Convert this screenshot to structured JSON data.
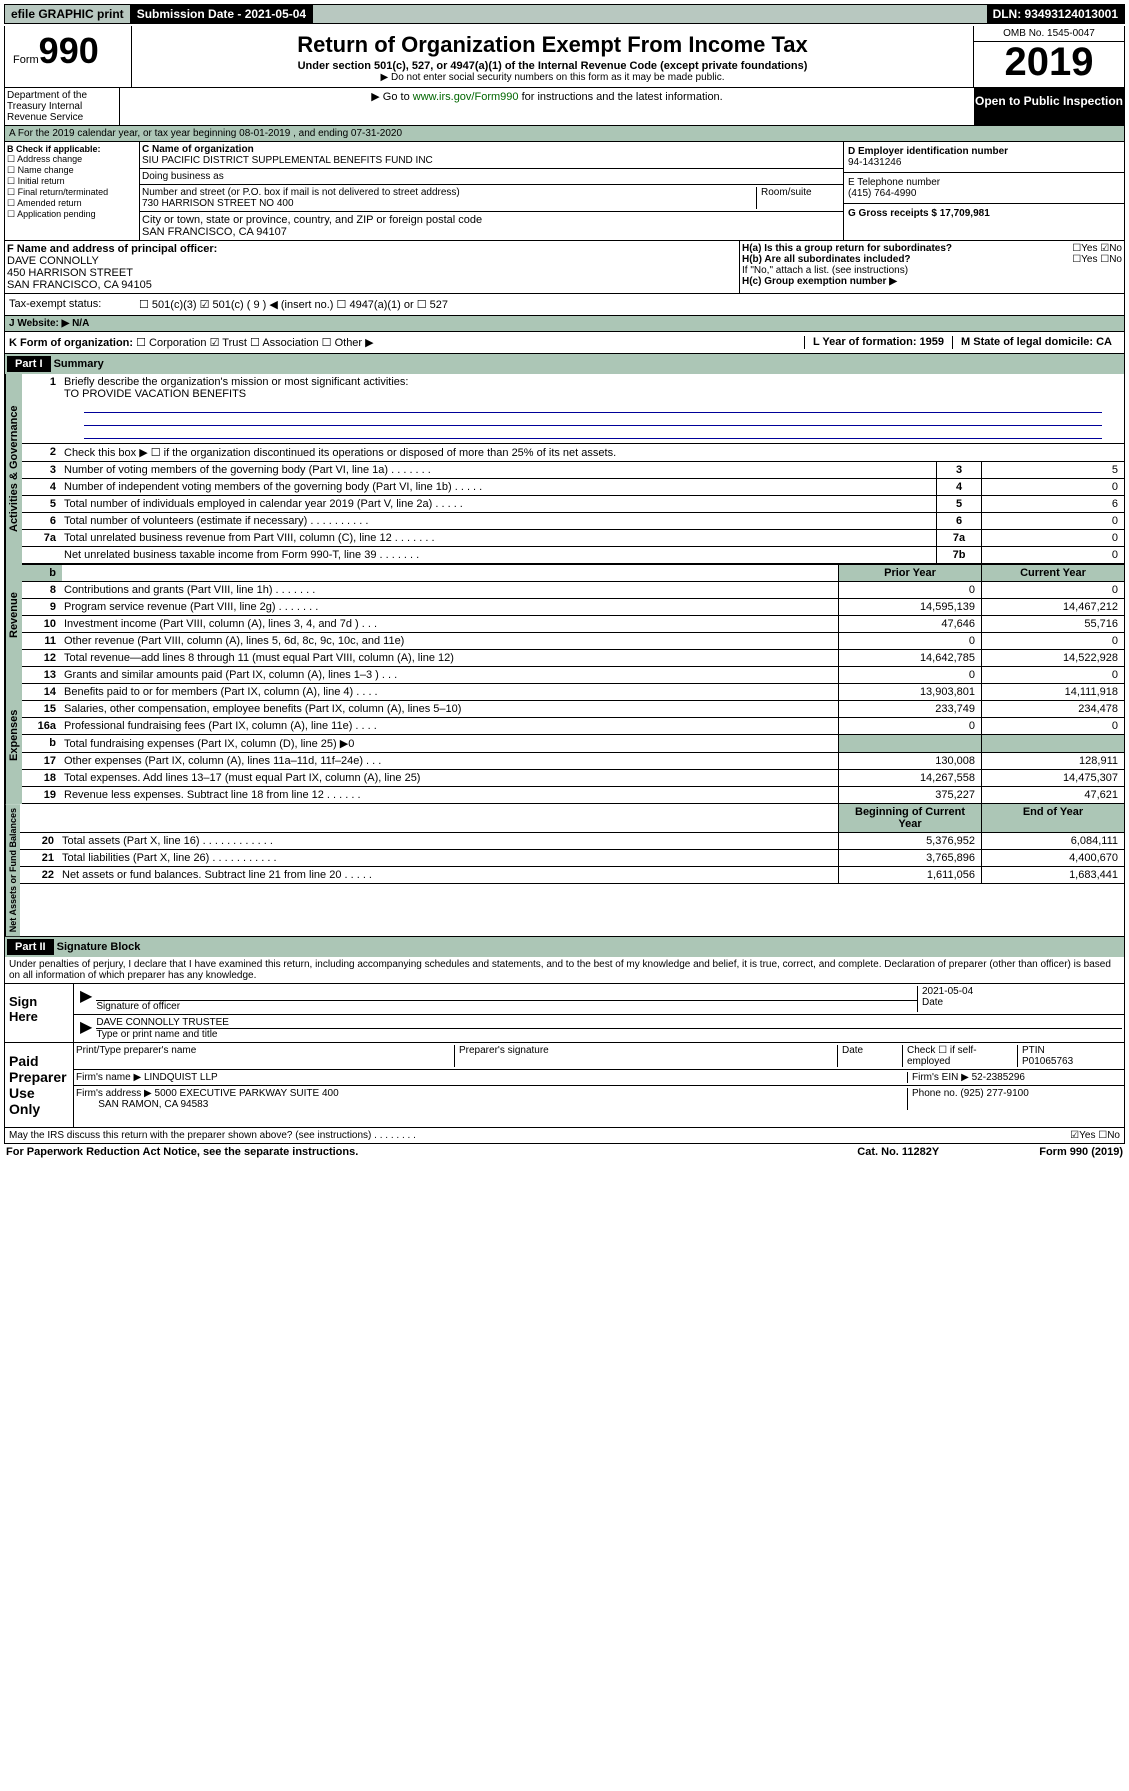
{
  "topbar": {
    "efile": "efile GRAPHIC print",
    "subdate_label": "Submission Date - 2021-05-04",
    "dln": "DLN: 93493124013001"
  },
  "header": {
    "form_word": "Form",
    "form_num": "990",
    "title": "Return of Organization Exempt From Income Tax",
    "subtitle": "Under section 501(c), 527, or 4947(a)(1) of the Internal Revenue Code (except private foundations)",
    "note1": "▶ Do not enter social security numbers on this form as it may be made public.",
    "note2_pre": "▶ Go to ",
    "note2_link": "www.irs.gov/Form990",
    "note2_post": " for instructions and the latest information.",
    "omb": "OMB No. 1545-0047",
    "year": "2019",
    "open": "Open to Public Inspection",
    "dept": "Department of the Treasury Internal Revenue Service"
  },
  "lineA": "A For the 2019 calendar year, or tax year beginning 08-01-2019    , and ending 07-31-2020",
  "boxB": {
    "title": "B Check if applicable:",
    "items": [
      "Address change",
      "Name change",
      "Initial return",
      "Final return/terminated",
      "Amended return",
      "Application pending"
    ]
  },
  "boxC": {
    "name_label": "C Name of organization",
    "name": "SIU PACIFIC DISTRICT SUPPLEMENTAL BENEFITS FUND INC",
    "dba": "Doing business as",
    "addr_label": "Number and street (or P.O. box if mail is not delivered to street address)",
    "room": "Room/suite",
    "addr": "730 HARRISON STREET NO 400",
    "city_label": "City or town, state or province, country, and ZIP or foreign postal code",
    "city": "SAN FRANCISCO, CA  94107"
  },
  "boxD": {
    "label": "D Employer identification number",
    "val": "94-1431246"
  },
  "boxE": {
    "label": "E Telephone number",
    "val": "(415) 764-4990"
  },
  "boxG": {
    "label": "G Gross receipts $ 17,709,981"
  },
  "boxF": {
    "label": "F  Name and address of principal officer:",
    "name": "DAVE CONNOLLY",
    "addr1": "450 HARRISON STREET",
    "addr2": "SAN FRANCISCO, CA  94105"
  },
  "boxH": {
    "a": "H(a)  Is this a group return for subordinates?",
    "b": "H(b)  Are all subordinates included?",
    "note": "If \"No,\" attach a list. (see instructions)",
    "c": "H(c)  Group exemption number ▶"
  },
  "taxExempt": "Tax-exempt status:",
  "tx_opts": [
    "501(c)(3)",
    "501(c) ( 9 ) ◀ (insert no.)",
    "4947(a)(1) or",
    "527"
  ],
  "websiteJ": "J Website: ▶  N/A",
  "lineK": "K Form of organization:",
  "k_opts": [
    "Corporation",
    "Trust",
    "Association",
    "Other ▶"
  ],
  "boxL": "L Year of formation: 1959",
  "boxM": "M State of legal domicile: CA",
  "part1": {
    "label": "Part I",
    "title": "Summary",
    "q1": "Briefly describe the organization's mission or most significant activities:",
    "q1a": "TO PROVIDE VACATION BENEFITS",
    "q2": "Check this box ▶ ☐  if the organization discontinued its operations or disposed of more than 25% of its net assets.",
    "sides": [
      "Activities & Governance",
      "Revenue",
      "Expenses",
      "Net Assets or Fund Balances"
    ],
    "hdrs": [
      "Prior Year",
      "Current Year",
      "Beginning of Current Year",
      "End of Year"
    ],
    "rows_top": [
      {
        "n": "3",
        "t": "Number of voting members of the governing body (Part VI, line 1a)  .    .    .    .    .    .    .",
        "b": "3",
        "v": "5"
      },
      {
        "n": "4",
        "t": "Number of independent voting members of the governing body (Part VI, line 1b)  .    .    .    .    .",
        "b": "4",
        "v": "0"
      },
      {
        "n": "5",
        "t": "Total number of individuals employed in calendar year 2019 (Part V, line 2a)  .    .    .    .    .",
        "b": "5",
        "v": "6"
      },
      {
        "n": "6",
        "t": "Total number of volunteers (estimate if necessary)  .    .    .    .    .    .    .    .    .    .",
        "b": "6",
        "v": "0"
      },
      {
        "n": "7a",
        "t": "Total unrelated business revenue from Part VIII, column (C), line 12  .    .    .    .    .    .    .",
        "b": "7a",
        "v": "0"
      },
      {
        "n": "",
        "t": "Net unrelated business taxable income from Form 990-T, line 39   .    .    .    .    .    .    .",
        "b": "7b",
        "v": "0"
      }
    ],
    "rows_rev": [
      {
        "n": "8",
        "t": "Contributions and grants (Part VIII, line 1h)  .    .    .    .    .    .    .",
        "p": "0",
        "c": "0"
      },
      {
        "n": "9",
        "t": "Program service revenue (Part VIII, line 2g)  .    .    .    .    .    .    .",
        "p": "14,595,139",
        "c": "14,467,212"
      },
      {
        "n": "10",
        "t": "Investment income (Part VIII, column (A), lines 3, 4, and 7d )  .    .    .",
        "p": "47,646",
        "c": "55,716"
      },
      {
        "n": "11",
        "t": "Other revenue (Part VIII, column (A), lines 5, 6d, 8c, 9c, 10c, and 11e)",
        "p": "0",
        "c": "0"
      },
      {
        "n": "12",
        "t": "Total revenue—add lines 8 through 11 (must equal Part VIII, column (A), line 12)",
        "p": "14,642,785",
        "c": "14,522,928"
      }
    ],
    "rows_exp": [
      {
        "n": "13",
        "t": "Grants and similar amounts paid (Part IX, column (A), lines 1–3 )  .    .    .",
        "p": "0",
        "c": "0"
      },
      {
        "n": "14",
        "t": "Benefits paid to or for members (Part IX, column (A), line 4)  .    .    .    .",
        "p": "13,903,801",
        "c": "14,111,918"
      },
      {
        "n": "15",
        "t": "Salaries, other compensation, employee benefits (Part IX, column (A), lines 5–10)",
        "p": "233,749",
        "c": "234,478"
      },
      {
        "n": "16a",
        "t": "Professional fundraising fees (Part IX, column (A), line 11e)  .    .    .    .",
        "p": "0",
        "c": "0"
      },
      {
        "n": "b",
        "t": "Total fundraising expenses (Part IX, column (D), line 25) ▶0",
        "p": "",
        "c": ""
      },
      {
        "n": "17",
        "t": "Other expenses (Part IX, column (A), lines 11a–11d, 11f–24e)  .    .    .",
        "p": "130,008",
        "c": "128,911"
      },
      {
        "n": "18",
        "t": "Total expenses. Add lines 13–17 (must equal Part IX, column (A), line 25)",
        "p": "14,267,558",
        "c": "14,475,307"
      },
      {
        "n": "19",
        "t": "Revenue less expenses. Subtract line 18 from line 12  .    .    .    .    .    .",
        "p": "375,227",
        "c": "47,621"
      }
    ],
    "rows_net": [
      {
        "n": "20",
        "t": "Total assets (Part X, line 16)  .    .    .    .    .    .    .    .    .    .    .    .",
        "p": "5,376,952",
        "c": "6,084,111"
      },
      {
        "n": "21",
        "t": "Total liabilities (Part X, line 26)  .    .    .    .    .    .    .    .    .    .    .",
        "p": "3,765,896",
        "c": "4,400,670"
      },
      {
        "n": "22",
        "t": "Net assets or fund balances. Subtract line 21 from line 20  .    .    .    .    .",
        "p": "1,611,056",
        "c": "1,683,441"
      }
    ]
  },
  "part2": {
    "label": "Part II",
    "title": "Signature Block",
    "decl": "Under penalties of perjury, I declare that I have examined this return, including accompanying schedules and statements, and to the best of my knowledge and belief, it is true, correct, and complete. Declaration of preparer (other than officer) is based on all information of which preparer has any knowledge.",
    "sign_here": "Sign Here",
    "sig_officer": "Signature of officer",
    "sig_date": "2021-05-04",
    "date_lbl": "Date",
    "typed": "DAVE CONNOLLY TRUSTEE",
    "typed_lbl": "Type or print name and title",
    "paid": "Paid Preparer Use Only",
    "prep_name_lbl": "Print/Type preparer's name",
    "prep_sig_lbl": "Preparer's signature",
    "check_self": "Check ☐ if self-employed",
    "ptin_lbl": "PTIN",
    "ptin": "P01065763",
    "firm_name_lbl": "Firm's name   ▶",
    "firm_name": "LINDQUIST LLP",
    "firm_ein_lbl": "Firm's EIN ▶",
    "firm_ein": "52-2385296",
    "firm_addr_lbl": "Firm's address ▶",
    "firm_addr": "5000 EXECUTIVE PARKWAY SUITE 400",
    "firm_city": "SAN RAMON, CA  94583",
    "phone_lbl": "Phone no.",
    "phone": "(925) 277-9100",
    "discuss": "May the IRS discuss this return with the preparer shown above? (see instructions)   .    .    .    .    .    .    .    .",
    "yes": "Yes",
    "no": "No"
  },
  "footer": {
    "paperwork": "For Paperwork Reduction Act Notice, see the separate instructions.",
    "cat": "Cat. No. 11282Y",
    "form": "Form 990 (2019)"
  }
}
